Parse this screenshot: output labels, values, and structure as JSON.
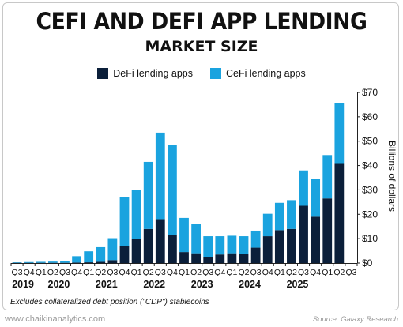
{
  "header": {
    "title": "CEFI AND DEFI APP LENDING",
    "subtitle": "MARKET SIZE"
  },
  "legend": {
    "defi_label": "DeFi lending apps",
    "cefi_label": "CeFi lending apps"
  },
  "colors": {
    "defi": "#0b1f3a",
    "cefi": "#1aa3df",
    "axis": "#222222"
  },
  "footnote": "Excludes collateralized debt position (\"CDP\") stablecoins",
  "watermark": "www.chaikinanalytics.com",
  "source": "Source: Galaxy Research",
  "chart_data": {
    "type": "bar",
    "stacked": true,
    "categories": [
      "Q3",
      "Q4",
      "Q1",
      "Q2",
      "Q3",
      "Q4",
      "Q1",
      "Q2",
      "Q3",
      "Q4",
      "Q1",
      "Q2",
      "Q3",
      "Q4",
      "Q1",
      "Q2",
      "Q3",
      "Q4",
      "Q1",
      "Q2",
      "Q3",
      "Q4",
      "Q1",
      "Q2",
      "Q3",
      "Q4",
      "Q1",
      "Q2",
      "Q3"
    ],
    "years": [
      {
        "label": "2019",
        "start": 0,
        "end": 1
      },
      {
        "label": "2020",
        "start": 2,
        "end": 5
      },
      {
        "label": "2021",
        "start": 6,
        "end": 9
      },
      {
        "label": "2022",
        "start": 10,
        "end": 13
      },
      {
        "label": "2023",
        "start": 14,
        "end": 17
      },
      {
        "label": "2024",
        "start": 18,
        "end": 21
      },
      {
        "label": "2025",
        "start": 22,
        "end": 25
      }
    ],
    "series": [
      {
        "name": "DeFi lending apps",
        "values": [
          0.1,
          0.1,
          0.1,
          0.1,
          0.1,
          0.2,
          0.3,
          0.5,
          1.2,
          7,
          10,
          14,
          18,
          11.5,
          4.5,
          4,
          2.5,
          3.5,
          4,
          3.8,
          6.3,
          11,
          13.5,
          14,
          23.5,
          19,
          26.5,
          41,
          0
        ]
      },
      {
        "name": "CeFi lending apps",
        "values": [
          0.2,
          0.3,
          0.4,
          0.5,
          0.6,
          2.6,
          4.5,
          6,
          9,
          20,
          20,
          27.5,
          35.5,
          37,
          14,
          12,
          8.5,
          7.5,
          7.2,
          7.2,
          7,
          9.2,
          11.2,
          11.8,
          14.5,
          15.5,
          17.8,
          24.5,
          0
        ]
      }
    ],
    "y_ticks": [
      "$0",
      "$10",
      "$20",
      "$30",
      "$40",
      "$50",
      "$60",
      "$70"
    ],
    "ylim": [
      0,
      70
    ],
    "ylabel": "Billions of dollars",
    "grid": false,
    "legend_position": "top"
  }
}
